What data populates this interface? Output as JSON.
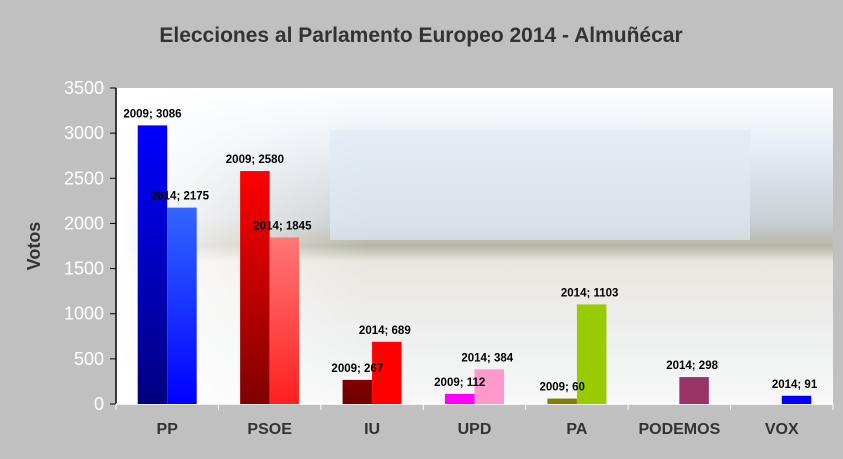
{
  "chart_data": {
    "type": "bar",
    "title": "Elecciones al Parlamento Europeo 2014 - Almuñécar",
    "xlabel": "",
    "ylabel": "Votos",
    "ylim": [
      0,
      3500
    ],
    "yticks": [
      0,
      500,
      1000,
      1500,
      2000,
      2500,
      3000,
      3500
    ],
    "grid": false,
    "legend": "none",
    "categories": [
      "PP",
      "PSOE",
      "IU",
      "UPD",
      "PA",
      "PODEMOS",
      "VOX"
    ],
    "series": [
      {
        "name": "2009",
        "values": [
          3086,
          2580,
          267,
          112,
          60,
          null,
          null
        ],
        "labels": [
          "2009; 3086",
          "2009; 2580",
          "2009; 267",
          "2009; 112",
          "2009; 60",
          null,
          null
        ],
        "colors": [
          [
            "#0000ff",
            "#000080"
          ],
          [
            "#ff0000",
            "#800000"
          ],
          [
            "#800000",
            "#700000"
          ],
          [
            "#ff00ff",
            "#ff00ff"
          ],
          [
            "#808000",
            "#808000"
          ],
          null,
          null
        ]
      },
      {
        "name": "2014",
        "values": [
          2175,
          1845,
          689,
          384,
          1103,
          298,
          91
        ],
        "labels": [
          "2014; 2175",
          "2014; 1845",
          "2014; 689",
          "2014; 384",
          "2014; 1103",
          "2014; 298",
          "2014; 91"
        ],
        "colors": [
          [
            "#3366ff",
            "#0000ff"
          ],
          [
            "#ff7777",
            "#ff2020"
          ],
          [
            "#ff0000",
            "#ff0000"
          ],
          [
            "#ff99cc",
            "#ff99cc"
          ],
          [
            "#99cc00",
            "#99cc00"
          ],
          [
            "#993366",
            "#993366"
          ],
          [
            "#0000ff",
            "#0000ff"
          ]
        ]
      }
    ],
    "background": "photo of European Parliament building over water"
  }
}
